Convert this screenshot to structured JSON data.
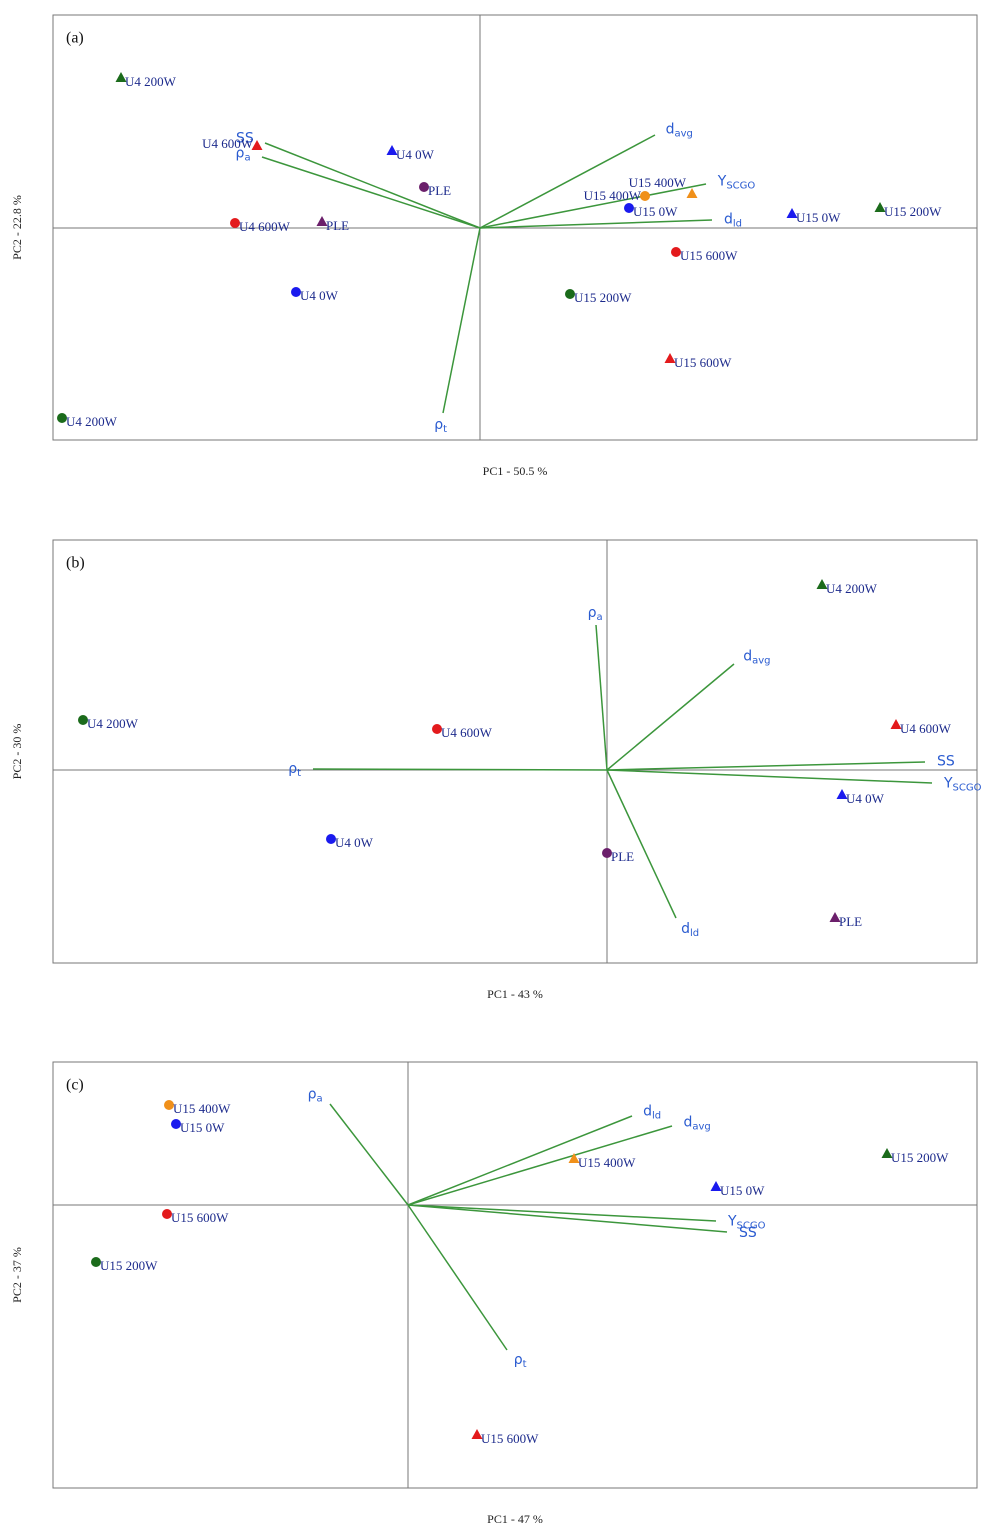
{
  "chart_data": [
    {
      "type": "biplot",
      "panel_label": "(a)",
      "xlabel": "PC1 - 50.5 %",
      "ylabel": "PC2 - 22.8 %",
      "xlim": [
        -4.27,
        4.97
      ],
      "ylim": [
        -2.12,
        2.13
      ],
      "loading_color": "#3c963c",
      "points": [
        {
          "name": "U4 200W",
          "marker": "triangle",
          "color": "#1b6b1b",
          "x": -3.59,
          "y": 1.5
        },
        {
          "name": "U4 600W",
          "marker": "triangle",
          "color": "#e31a1c",
          "x": -2.23,
          "y": 0.82
        },
        {
          "name": "U4 0W",
          "marker": "triangle",
          "color": "#1a1aee",
          "x": -0.88,
          "y": 0.77
        },
        {
          "name": "PLE",
          "marker": "circle",
          "color": "#6b1f6b",
          "x": -0.56,
          "y": 0.41
        },
        {
          "name": "U4 600W",
          "marker": "circle",
          "color": "#e31a1c",
          "x": -2.45,
          "y": 0.05
        },
        {
          "name": "PLE",
          "marker": "triangle",
          "color": "#6b1f6b",
          "x": -1.58,
          "y": 0.06
        },
        {
          "name": "U4 0W",
          "marker": "circle",
          "color": "#1a1aee",
          "x": -1.84,
          "y": -0.64
        },
        {
          "name": "U4 200W",
          "marker": "circle",
          "color": "#1b6b1b",
          "x": -4.18,
          "y": -1.9
        },
        {
          "name": "U15 400W",
          "marker": "circle",
          "color": "#f0901a",
          "x": 1.65,
          "y": 0.32
        },
        {
          "name": "U15 400W",
          "marker": "triangle",
          "color": "#f0901a",
          "x": 2.12,
          "y": 0.34
        },
        {
          "name": "U15 0W",
          "marker": "circle",
          "color": "#1a1aee",
          "x": 1.49,
          "y": 0.2
        },
        {
          "name": "U15 0W",
          "marker": "triangle",
          "color": "#1a1aee",
          "x": 3.12,
          "y": 0.14
        },
        {
          "name": "U15 200W",
          "marker": "triangle",
          "color": "#1b6b1b",
          "x": 4.0,
          "y": 0.2
        },
        {
          "name": "U15 600W",
          "marker": "circle",
          "color": "#e31a1c",
          "x": 1.96,
          "y": -0.24
        },
        {
          "name": "U15 200W",
          "marker": "circle",
          "color": "#1b6b1b",
          "x": 0.9,
          "y": -0.66
        },
        {
          "name": "U15 600W",
          "marker": "triangle",
          "color": "#e31a1c",
          "x": 1.9,
          "y": -1.31
        }
      ],
      "loadings": [
        {
          "name": "SS",
          "x": -2.15,
          "y": 0.85
        },
        {
          "name": "ρ",
          "subscript": "a",
          "x": -2.18,
          "y": 0.71
        },
        {
          "name": "d",
          "subscript": "avg",
          "x": 1.75,
          "y": 0.93
        },
        {
          "name": "Y",
          "subscript": "SCGO",
          "x": 2.26,
          "y": 0.44
        },
        {
          "name": "d",
          "subscript": "ld",
          "x": 2.32,
          "y": 0.08
        },
        {
          "name": "ρ",
          "subscript": "t",
          "x": -0.37,
          "y": -1.85
        }
      ]
    },
    {
      "type": "biplot",
      "panel_label": "(b)",
      "xlabel": "PC1 - 43 %",
      "ylabel": "PC2 - 30 %",
      "xlim": [
        -5.54,
        3.7
      ],
      "ylim": [
        -1.93,
        2.3
      ],
      "loading_color": "#3c963c",
      "points": [
        {
          "name": "U4 200W",
          "marker": "triangle",
          "color": "#1b6b1b",
          "x": 2.15,
          "y": 1.85
        },
        {
          "name": "U4 600W",
          "marker": "triangle",
          "color": "#e31a1c",
          "x": 2.89,
          "y": 0.45
        },
        {
          "name": "U4 0W",
          "marker": "triangle",
          "color": "#1a1aee",
          "x": 2.35,
          "y": -0.25
        },
        {
          "name": "PLE",
          "marker": "triangle",
          "color": "#6b1f6b",
          "x": 2.28,
          "y": -1.48
        },
        {
          "name": "U4 200W",
          "marker": "circle",
          "color": "#1b6b1b",
          "x": -5.24,
          "y": 0.5
        },
        {
          "name": "U4 600W",
          "marker": "circle",
          "color": "#e31a1c",
          "x": -1.7,
          "y": 0.41
        },
        {
          "name": "U4 0W",
          "marker": "circle",
          "color": "#1a1aee",
          "x": -2.76,
          "y": -0.69
        },
        {
          "name": "PLE",
          "marker": "circle",
          "color": "#6b1f6b",
          "x": 0.0,
          "y": -0.83
        }
      ],
      "loadings": [
        {
          "name": "ρ",
          "subscript": "a",
          "x": -0.11,
          "y": 1.45
        },
        {
          "name": "d",
          "subscript": "avg",
          "x": 1.27,
          "y": 1.06
        },
        {
          "name": "ρ",
          "subscript": "t",
          "x": -2.94,
          "y": 0.01
        },
        {
          "name": "SS",
          "x": 3.18,
          "y": 0.08
        },
        {
          "name": "Y",
          "subscript": "SCGO",
          "x": 3.25,
          "y": -0.13
        },
        {
          "name": "d",
          "subscript": "ld",
          "x": 0.69,
          "y": -1.48
        }
      ]
    },
    {
      "type": "biplot",
      "panel_label": "(c)",
      "xlabel": "PC1 - 47 %",
      "ylabel": "PC2 - 37 %",
      "xlim": [
        -3.55,
        5.69
      ],
      "ylim": [
        -2.83,
        1.43
      ],
      "loading_color": "#3c963c",
      "points": [
        {
          "name": "U15 400W",
          "marker": "circle",
          "color": "#f0901a",
          "x": -2.39,
          "y": 1.0
        },
        {
          "name": "U15 0W",
          "marker": "circle",
          "color": "#1a1aee",
          "x": -2.32,
          "y": 0.81
        },
        {
          "name": "U15 600W",
          "marker": "circle",
          "color": "#e31a1c",
          "x": -2.41,
          "y": -0.09
        },
        {
          "name": "U15 200W",
          "marker": "circle",
          "color": "#1b6b1b",
          "x": -3.12,
          "y": -0.57
        },
        {
          "name": "U15 400W",
          "marker": "triangle",
          "color": "#f0901a",
          "x": 1.66,
          "y": 0.46
        },
        {
          "name": "U15 0W",
          "marker": "triangle",
          "color": "#1a1aee",
          "x": 3.08,
          "y": 0.18
        },
        {
          "name": "U15 200W",
          "marker": "triangle",
          "color": "#1b6b1b",
          "x": 4.79,
          "y": 0.51
        },
        {
          "name": "U15 600W",
          "marker": "triangle",
          "color": "#e31a1c",
          "x": 0.69,
          "y": -2.3
        }
      ],
      "loadings": [
        {
          "name": "ρ",
          "subscript": "a",
          "x": -0.78,
          "y": 1.01
        },
        {
          "name": "d",
          "subscript": "ld",
          "x": 2.24,
          "y": 0.89
        },
        {
          "name": "d",
          "subscript": "avg",
          "x": 2.64,
          "y": 0.79
        },
        {
          "name": "Y",
          "subscript": "SCGO",
          "x": 3.08,
          "y": -0.16
        },
        {
          "name": "SS",
          "x": 3.19,
          "y": -0.27
        },
        {
          "name": "ρ",
          "subscript": "t",
          "x": 0.99,
          "y": -1.45
        }
      ]
    }
  ]
}
